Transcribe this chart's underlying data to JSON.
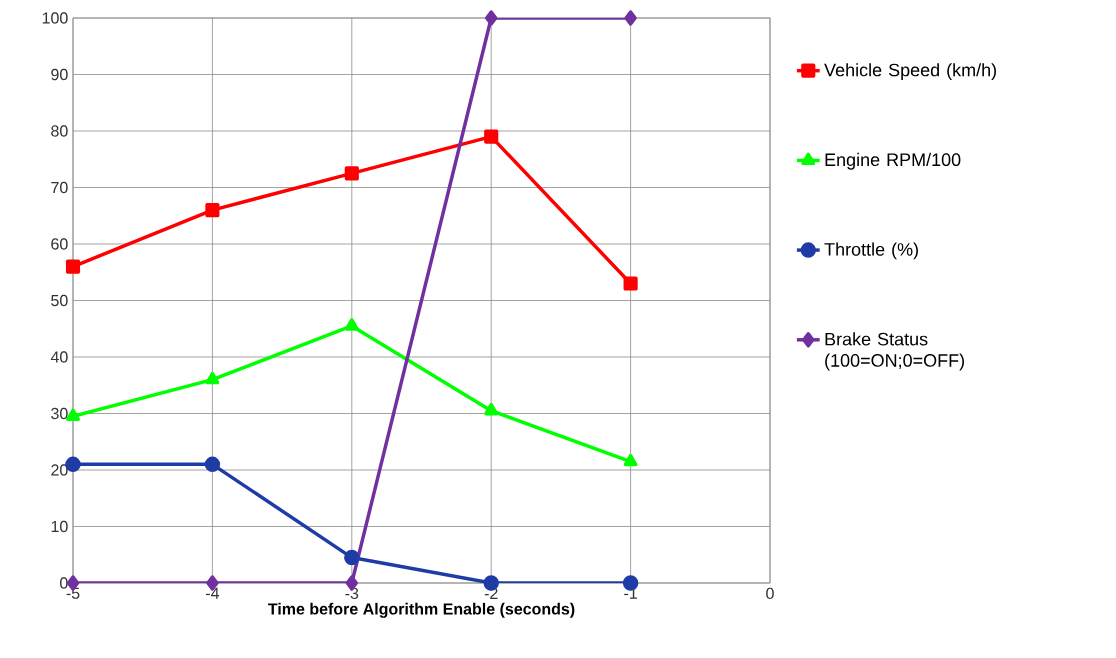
{
  "chart_data": {
    "type": "line",
    "xlabel": "Time before Algorithm Enable  (seconds)",
    "x": [
      -5,
      -4,
      -3,
      -2,
      -1
    ],
    "series": [
      {
        "name": "Vehicle Speed (km/h)",
        "color": "#ff0000",
        "marker": "square",
        "values": [
          56,
          66,
          72.5,
          79,
          53
        ]
      },
      {
        "name": "Engine RPM/100",
        "color": "#00ff00",
        "marker": "triangle",
        "values": [
          29.5,
          36,
          45.5,
          30.5,
          21.5
        ]
      },
      {
        "name": "Throttle (%)",
        "color": "#1f3ca6",
        "marker": "circle",
        "values": [
          21,
          21,
          4.5,
          0,
          0
        ]
      },
      {
        "name": "Brake Status (100=ON;0=OFF)",
        "color": "#7030a0",
        "marker": "diamond",
        "values": [
          0,
          0,
          0,
          100,
          100
        ]
      }
    ],
    "xlim": [
      -5,
      0
    ],
    "xticks": [
      -5,
      -4,
      -3,
      -2,
      -1,
      0
    ],
    "ylim": [
      0,
      100
    ],
    "yticks": [
      0,
      10,
      20,
      30,
      40,
      50,
      60,
      70,
      80,
      90,
      100
    ],
    "grid": true,
    "legend": "right",
    "line_style": "solid"
  }
}
